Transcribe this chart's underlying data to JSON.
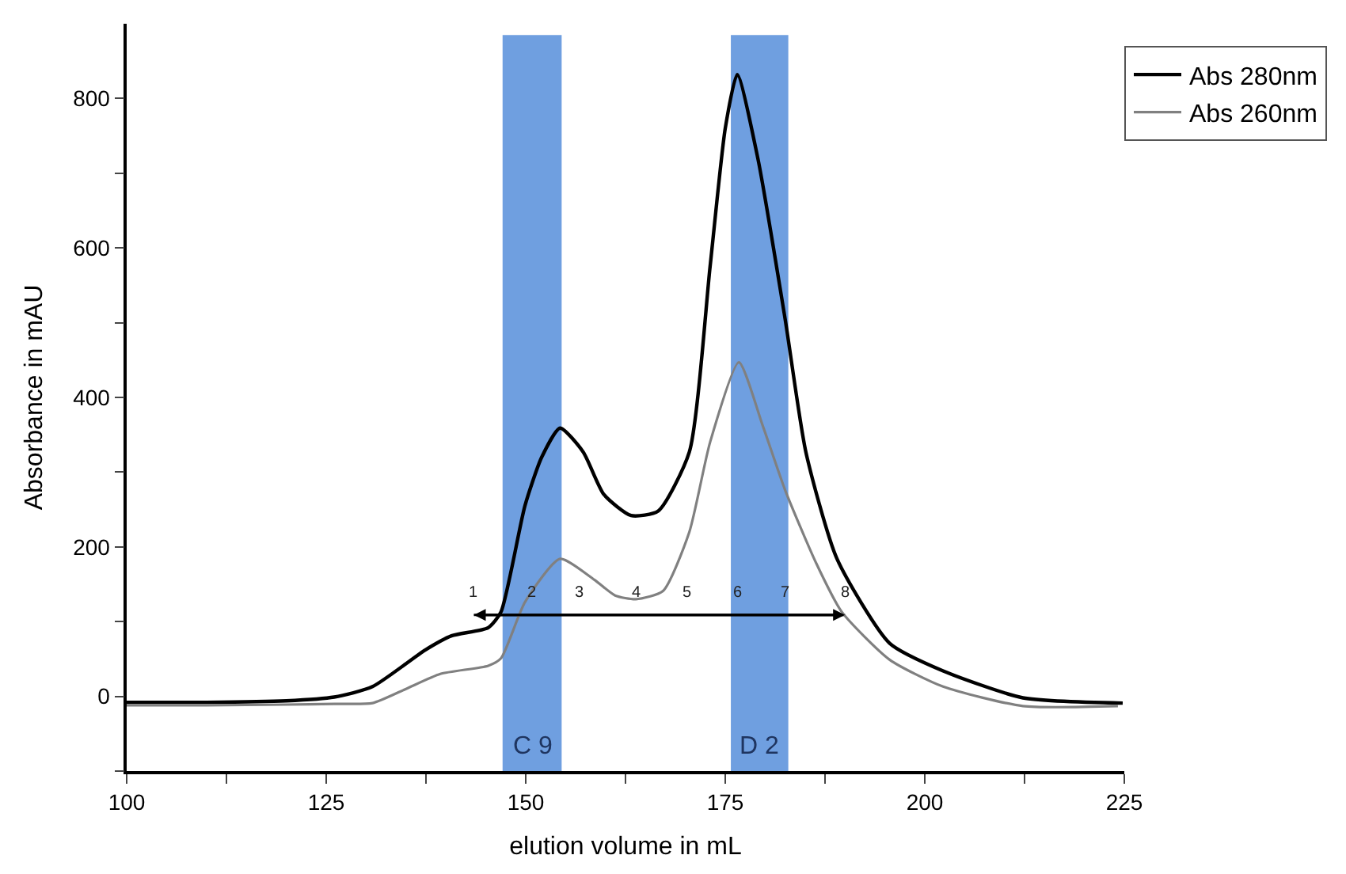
{
  "chart_data": {
    "type": "line",
    "xlabel": "elution volume in mL",
    "ylabel": "Absorbance in mAU",
    "series": [
      {
        "name": "Abs 280nm",
        "color": "#000000",
        "x": [
          100,
          110,
          120,
          126,
          130.8,
          137.4,
          140.7,
          145.3,
          146.9,
          149.9,
          152,
          154.3,
          157.2,
          159.8,
          163.2,
          166.6,
          170.5,
          173.1,
          175,
          176.5,
          179.1,
          182.5,
          185.1,
          189.0,
          195.6,
          202.3,
          212.3,
          224.8
        ],
        "values": [
          -8,
          -8,
          -6,
          -1,
          13,
          62,
          81,
          92,
          113,
          255,
          320,
          359,
          327,
          270,
          242,
          248,
          327,
          575,
          760,
          832,
          719,
          505,
          327,
          184,
          71,
          34,
          -2,
          -9
        ]
      },
      {
        "type": "line",
        "color": "#000000",
        "x": [
          143.5,
          190.0
        ],
        "values": [
          109,
          109
        ]
      },
      {
        "name": "Abs 260nm",
        "color": "#808080",
        "x": [
          100,
          110,
          120,
          126,
          130.8,
          135,
          139.3,
          145.3,
          146.9,
          149.9,
          154.3,
          158.6,
          161.2,
          163.8,
          167.2,
          170.5,
          173.1,
          176.7,
          179.7,
          182.5,
          186.4,
          189.6,
          195.6,
          202.3,
          212.3,
          224.2
        ],
        "values": [
          -12,
          -12,
          -11,
          -10,
          -9,
          10,
          30,
          41,
          51,
          126,
          184,
          156,
          135,
          130,
          141,
          220,
          340,
          447,
          362,
          276,
          178,
          113,
          49,
          13,
          -13,
          -13
        ]
      }
    ],
    "xlim": [
      100,
      225
    ],
    "xticks": [
      100,
      {
        "value": 112.5,
        "label": null
      },
      125,
      {
        "value": 137.5,
        "label": null
      },
      150,
      {
        "value": 162.5,
        "label": null
      },
      175,
      {
        "value": 187.5,
        "label": null
      },
      200,
      {
        "value": 212.5,
        "label": null
      },
      225
    ],
    "ylim": [
      -100,
      900
    ],
    "yticks": [
      {
        "value": -100,
        "label": null
      },
      0,
      {
        "value": 100,
        "label": null
      },
      200,
      {
        "value": 300,
        "label": null
      },
      400,
      {
        "value": 500,
        "label": null
      },
      600,
      {
        "value": 700,
        "label": null
      },
      800
    ],
    "bands": [
      {
        "axis": "x",
        "from": 147.1,
        "to": 154.5,
        "label": "C 9",
        "color": "#6f9fe0"
      },
      {
        "axis": "x",
        "from": 175.7,
        "to": 182.9,
        "label": "D 2",
        "color": "#6f9fe0"
      }
    ],
    "annotations": [
      {
        "text": "1",
        "x": 143.5,
        "y": 109
      },
      {
        "text": "2",
        "x": 150.7,
        "y": 109
      },
      {
        "text": "3",
        "x": 156.8,
        "y": 109
      },
      {
        "text": "4",
        "x": 163.8,
        "y": 109
      },
      {
        "text": "5",
        "x": 170.2,
        "y": 109
      },
      {
        "text": "6",
        "x": 176.5,
        "y": 109
      },
      {
        "text": "7",
        "x": 182.5,
        "y": 109
      },
      {
        "text": "8",
        "x": 190.0,
        "y": 109
      }
    ],
    "legend": "top right",
    "grid": false,
    "marker": "none",
    "line_style": "solid"
  }
}
